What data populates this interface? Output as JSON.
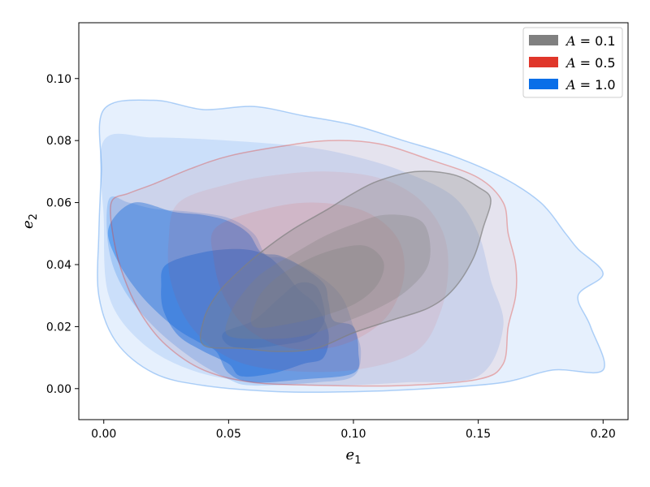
{
  "chart_data": {
    "type": "contour",
    "xlabel": {
      "base": "e",
      "sub": "1"
    },
    "ylabel": {
      "base": "e",
      "sub": "2"
    },
    "xlim": [
      -0.01,
      0.21
    ],
    "ylim": [
      -0.01,
      0.118
    ],
    "xticks": [
      {
        "value": 0.0,
        "label": "0.00"
      },
      {
        "value": 0.05,
        "label": "0.05"
      },
      {
        "value": 0.1,
        "label": "0.10"
      },
      {
        "value": 0.15,
        "label": "0.15"
      },
      {
        "value": 0.2,
        "label": "0.20"
      }
    ],
    "yticks": [
      {
        "value": 0.0,
        "label": "0.00"
      },
      {
        "value": 0.02,
        "label": "0.02"
      },
      {
        "value": 0.04,
        "label": "0.04"
      },
      {
        "value": 0.06,
        "label": "0.06"
      },
      {
        "value": 0.08,
        "label": "0.08"
      },
      {
        "value": 0.1,
        "label": "0.10"
      }
    ],
    "grid": false,
    "legend": {
      "placement": "top-right"
    },
    "series": [
      {
        "name": "A = 0.1",
        "legend_var": "A",
        "legend_rest": " = 0.1",
        "color": "#808080",
        "levels": [
          {
            "fill_opacity": 0.28,
            "stroke_opacity": 0.7,
            "points": [
              [
                0.04,
                0.014
              ],
              [
                0.055,
                0.013
              ],
              [
                0.07,
                0.012
              ],
              [
                0.085,
                0.013
              ],
              [
                0.1,
                0.018
              ],
              [
                0.115,
                0.022
              ],
              [
                0.13,
                0.026
              ],
              [
                0.14,
                0.032
              ],
              [
                0.148,
                0.042
              ],
              [
                0.152,
                0.052
              ],
              [
                0.155,
                0.061
              ],
              [
                0.15,
                0.065
              ],
              [
                0.14,
                0.069
              ],
              [
                0.125,
                0.07
              ],
              [
                0.11,
                0.067
              ],
              [
                0.1,
                0.063
              ],
              [
                0.09,
                0.058
              ],
              [
                0.075,
                0.051
              ],
              [
                0.063,
                0.044
              ],
              [
                0.053,
                0.037
              ],
              [
                0.045,
                0.03
              ],
              [
                0.04,
                0.022
              ]
            ]
          },
          {
            "fill_opacity": 0.3,
            "stroke_opacity": 0.0,
            "points": [
              [
                0.05,
                0.017
              ],
              [
                0.065,
                0.016
              ],
              [
                0.08,
                0.017
              ],
              [
                0.095,
                0.021
              ],
              [
                0.11,
                0.026
              ],
              [
                0.122,
                0.032
              ],
              [
                0.13,
                0.04
              ],
              [
                0.13,
                0.05
              ],
              [
                0.125,
                0.055
              ],
              [
                0.112,
                0.056
              ],
              [
                0.1,
                0.053
              ],
              [
                0.088,
                0.049
              ],
              [
                0.075,
                0.043
              ],
              [
                0.063,
                0.037
              ],
              [
                0.055,
                0.03
              ],
              [
                0.05,
                0.023
              ]
            ]
          },
          {
            "fill_opacity": 0.32,
            "stroke_opacity": 0.0,
            "points": [
              [
                0.06,
                0.02
              ],
              [
                0.075,
                0.021
              ],
              [
                0.09,
                0.024
              ],
              [
                0.102,
                0.028
              ],
              [
                0.11,
                0.034
              ],
              [
                0.112,
                0.041
              ],
              [
                0.105,
                0.046
              ],
              [
                0.093,
                0.045
              ],
              [
                0.08,
                0.041
              ],
              [
                0.068,
                0.035
              ],
              [
                0.061,
                0.028
              ]
            ]
          }
        ]
      },
      {
        "name": "A = 0.5",
        "legend_var": "A",
        "legend_rest": " = 0.5",
        "color": "#e0362a",
        "levels": [
          {
            "fill_opacity": 0.07,
            "stroke_opacity": 0.35,
            "points": [
              [
                0.003,
                0.06
              ],
              [
                0.01,
                0.063
              ],
              [
                0.02,
                0.066
              ],
              [
                0.035,
                0.071
              ],
              [
                0.05,
                0.075
              ],
              [
                0.07,
                0.078
              ],
              [
                0.09,
                0.08
              ],
              [
                0.11,
                0.079
              ],
              [
                0.13,
                0.074
              ],
              [
                0.15,
                0.068
              ],
              [
                0.16,
                0.06
              ],
              [
                0.162,
                0.05
              ],
              [
                0.165,
                0.04
              ],
              [
                0.165,
                0.03
              ],
              [
                0.162,
                0.02
              ],
              [
                0.16,
                0.008
              ],
              [
                0.15,
                0.003
              ],
              [
                0.12,
                0.001
              ],
              [
                0.09,
                0.001
              ],
              [
                0.06,
                0.002
              ],
              [
                0.04,
                0.006
              ],
              [
                0.025,
                0.014
              ],
              [
                0.015,
                0.024
              ],
              [
                0.008,
                0.036
              ],
              [
                0.004,
                0.048
              ]
            ]
          },
          {
            "fill_opacity": 0.08,
            "stroke_opacity": 0.0,
            "points": [
              [
                0.03,
                0.06
              ],
              [
                0.05,
                0.066
              ],
              [
                0.07,
                0.069
              ],
              [
                0.09,
                0.07
              ],
              [
                0.11,
                0.068
              ],
              [
                0.125,
                0.062
              ],
              [
                0.135,
                0.052
              ],
              [
                0.138,
                0.04
              ],
              [
                0.135,
                0.025
              ],
              [
                0.125,
                0.012
              ],
              [
                0.1,
                0.006
              ],
              [
                0.07,
                0.006
              ],
              [
                0.05,
                0.01
              ],
              [
                0.035,
                0.02
              ],
              [
                0.027,
                0.034
              ],
              [
                0.026,
                0.048
              ]
            ]
          },
          {
            "fill_opacity": 0.1,
            "stroke_opacity": 0.0,
            "points": [
              [
                0.045,
                0.052
              ],
              [
                0.065,
                0.058
              ],
              [
                0.085,
                0.06
              ],
              [
                0.105,
                0.057
              ],
              [
                0.118,
                0.048
              ],
              [
                0.12,
                0.035
              ],
              [
                0.112,
                0.022
              ],
              [
                0.095,
                0.014
              ],
              [
                0.075,
                0.013
              ],
              [
                0.058,
                0.019
              ],
              [
                0.048,
                0.03
              ],
              [
                0.044,
                0.042
              ]
            ]
          }
        ]
      },
      {
        "name": "A = 1.0",
        "legend_var": "A",
        "legend_rest": " = 1.0",
        "color": "#0a6fe8",
        "levels": [
          {
            "fill_opacity": 0.1,
            "stroke_opacity": 0.3,
            "points": [
              [
                0.0,
                0.09
              ],
              [
                0.02,
                0.093
              ],
              [
                0.04,
                0.09
              ],
              [
                0.06,
                0.091
              ],
              [
                0.08,
                0.088
              ],
              [
                0.1,
                0.085
              ],
              [
                0.12,
                0.08
              ],
              [
                0.14,
                0.075
              ],
              [
                0.16,
                0.068
              ],
              [
                0.175,
                0.06
              ],
              [
                0.185,
                0.05
              ],
              [
                0.19,
                0.045
              ],
              [
                0.2,
                0.037
              ],
              [
                0.19,
                0.03
              ],
              [
                0.195,
                0.02
              ],
              [
                0.2,
                0.006
              ],
              [
                0.18,
                0.006
              ],
              [
                0.16,
                0.002
              ],
              [
                0.13,
                0.0
              ],
              [
                0.1,
                -0.001
              ],
              [
                0.07,
                -0.001
              ],
              [
                0.04,
                0.001
              ],
              [
                0.02,
                0.005
              ],
              [
                0.005,
                0.015
              ],
              [
                -0.002,
                0.03
              ],
              [
                -0.002,
                0.05
              ],
              [
                -0.001,
                0.07
              ]
            ]
          },
          {
            "fill_opacity": 0.12,
            "stroke_opacity": 0.0,
            "points": [
              [
                0.0,
                0.08
              ],
              [
                0.02,
                0.081
              ],
              [
                0.05,
                0.08
              ],
              [
                0.08,
                0.078
              ],
              [
                0.1,
                0.075
              ],
              [
                0.12,
                0.07
              ],
              [
                0.14,
                0.062
              ],
              [
                0.15,
                0.05
              ],
              [
                0.155,
                0.035
              ],
              [
                0.16,
                0.02
              ],
              [
                0.15,
                0.004
              ],
              [
                0.12,
                0.002
              ],
              [
                0.09,
                0.001
              ],
              [
                0.06,
                0.002
              ],
              [
                0.035,
                0.006
              ],
              [
                0.015,
                0.015
              ],
              [
                0.002,
                0.03
              ],
              [
                0.0,
                0.055
              ]
            ]
          },
          {
            "fill_opacity": 0.2,
            "stroke_opacity": 0.0,
            "points": [
              [
                0.002,
                0.061
              ],
              [
                0.01,
                0.06
              ],
              [
                0.02,
                0.058
              ],
              [
                0.035,
                0.057
              ],
              [
                0.05,
                0.055
              ],
              [
                0.06,
                0.05
              ],
              [
                0.065,
                0.043
              ],
              [
                0.072,
                0.042
              ],
              [
                0.085,
                0.037
              ],
              [
                0.095,
                0.03
              ],
              [
                0.1,
                0.02
              ],
              [
                0.103,
                0.012
              ],
              [
                0.1,
                0.004
              ],
              [
                0.085,
                0.002
              ],
              [
                0.06,
                0.001
              ],
              [
                0.05,
                0.003
              ],
              [
                0.035,
                0.01
              ],
              [
                0.02,
                0.02
              ],
              [
                0.008,
                0.032
              ],
              [
                0.002,
                0.045
              ]
            ]
          },
          {
            "fill_opacity": 0.42,
            "stroke_opacity": 0.0,
            "points": [
              [
                0.012,
                0.06
              ],
              [
                0.028,
                0.057
              ],
              [
                0.04,
                0.056
              ],
              [
                0.05,
                0.054
              ],
              [
                0.058,
                0.05
              ],
              [
                0.063,
                0.044
              ],
              [
                0.07,
                0.043
              ],
              [
                0.078,
                0.04
              ],
              [
                0.088,
                0.034
              ],
              [
                0.09,
                0.028
              ],
              [
                0.092,
                0.022
              ],
              [
                0.1,
                0.02
              ],
              [
                0.102,
                0.012
              ],
              [
                0.1,
                0.005
              ],
              [
                0.08,
                0.003
              ],
              [
                0.06,
                0.002
              ],
              [
                0.05,
                0.005
              ],
              [
                0.045,
                0.012
              ],
              [
                0.038,
                0.015
              ],
              [
                0.028,
                0.02
              ],
              [
                0.015,
                0.03
              ],
              [
                0.005,
                0.042
              ],
              [
                0.002,
                0.052
              ]
            ]
          },
          {
            "fill_opacity": 0.45,
            "stroke_opacity": 0.0,
            "points": [
              [
                0.025,
                0.04
              ],
              [
                0.04,
                0.044
              ],
              [
                0.055,
                0.045
              ],
              [
                0.065,
                0.043
              ],
              [
                0.072,
                0.038
              ],
              [
                0.078,
                0.032
              ],
              [
                0.085,
                0.027
              ],
              [
                0.09,
                0.018
              ],
              [
                0.088,
                0.01
              ],
              [
                0.08,
                0.008
              ],
              [
                0.068,
                0.005
              ],
              [
                0.055,
                0.004
              ],
              [
                0.05,
                0.008
              ],
              [
                0.04,
                0.012
              ],
              [
                0.03,
                0.017
              ],
              [
                0.024,
                0.025
              ],
              [
                0.023,
                0.033
              ]
            ]
          },
          {
            "fill_opacity": 0.45,
            "stroke_opacity": 0.0,
            "points": [
              [
                0.048,
                0.018
              ],
              [
                0.06,
                0.022
              ],
              [
                0.07,
                0.029
              ],
              [
                0.078,
                0.034
              ],
              [
                0.085,
                0.033
              ],
              [
                0.088,
                0.027
              ],
              [
                0.088,
                0.021
              ],
              [
                0.082,
                0.016
              ],
              [
                0.07,
                0.014
              ],
              [
                0.058,
                0.013
              ],
              [
                0.05,
                0.014
              ]
            ]
          }
        ]
      }
    ]
  }
}
